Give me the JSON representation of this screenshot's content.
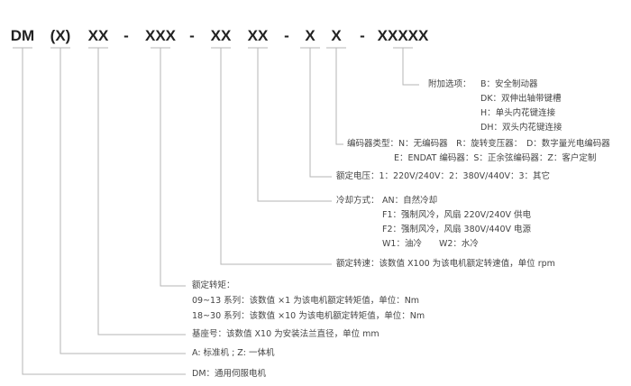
{
  "code_segments": [
    "DM",
    "(X)",
    "XX",
    "-",
    "XXX",
    "-",
    "XX",
    "XX",
    "-",
    "X",
    "X",
    "-",
    "XXXXX"
  ],
  "legends": {
    "options": {
      "label": "附加选项：",
      "items": [
        "B：安全制动器",
        "DK：双伸出轴带键槽",
        "H：单头内花键连接",
        "DH：双头内花键连接"
      ]
    },
    "encoder": {
      "lines": [
        "编码器类型：N：无编码器　R：旋转变压器：　D：数字量光电编码器",
        "E：ENDAT 编码器：S：正余弦编码器：Z：客户定制"
      ]
    },
    "voltage": "额定电压：1：220V/240V：2：380V/440V：3：其它",
    "cooling": {
      "label": "冷却方式：",
      "items": [
        "AN：自然冷却",
        "F1：强制风冷，风扇 220V/240V 供电",
        "F2：强制风冷，风扇 380V/440V 电源",
        "W1：油冷　　W2：水冷"
      ]
    },
    "speed": "额定转速：该数值 X100 为该电机额定转速值，单位 rpm",
    "torque": {
      "lines": [
        "额定转矩：",
        "09~13 系列：该数值 ×1 为该电机额定转矩值，单位：Nm",
        "18~30 系列：该数值 ×10 为该电机额定转矩值，单位：Nm"
      ]
    },
    "frame": "基座号：该数值 X10 为安装法兰直径，单位 mm",
    "type": "A: 标准机 ; Z: 一体机",
    "series": "DM：通用伺服电机"
  }
}
